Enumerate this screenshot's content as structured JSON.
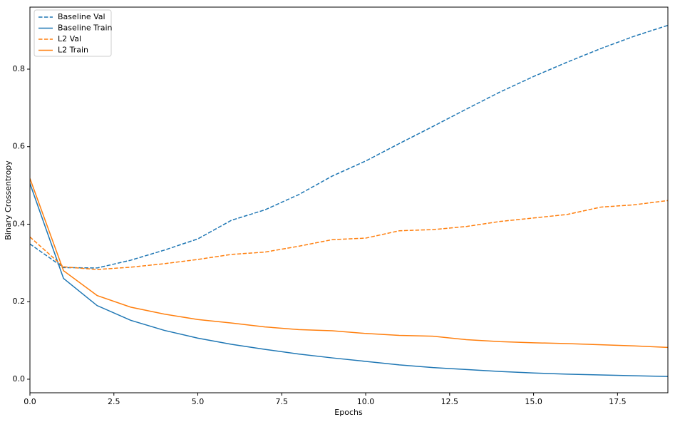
{
  "chart_data": {
    "type": "line",
    "xlabel": "Epochs",
    "ylabel": "Binary Crossentropy",
    "x": [
      0,
      1,
      2,
      3,
      4,
      5,
      6,
      7,
      8,
      9,
      10,
      11,
      12,
      13,
      14,
      15,
      16,
      17,
      18,
      19
    ],
    "series": [
      {
        "name": "Baseline Val",
        "color": "#1f77b4",
        "linestyle": "dashed",
        "values": [
          0.349,
          0.288,
          0.287,
          0.307,
          0.333,
          0.362,
          0.41,
          0.437,
          0.476,
          0.524,
          0.563,
          0.608,
          0.652,
          0.697,
          0.741,
          0.781,
          0.818,
          0.853,
          0.885,
          0.913
        ]
      },
      {
        "name": "Baseline Train",
        "color": "#1f77b4",
        "linestyle": "solid",
        "values": [
          0.505,
          0.26,
          0.19,
          0.152,
          0.126,
          0.106,
          0.09,
          0.077,
          0.065,
          0.055,
          0.046,
          0.037,
          0.03,
          0.025,
          0.02,
          0.016,
          0.013,
          0.011,
          0.009,
          0.007
        ]
      },
      {
        "name": "L2 Val",
        "color": "#ff7f0e",
        "linestyle": "dashed",
        "values": [
          0.367,
          0.29,
          0.283,
          0.289,
          0.298,
          0.309,
          0.322,
          0.328,
          0.343,
          0.36,
          0.364,
          0.383,
          0.386,
          0.394,
          0.407,
          0.416,
          0.425,
          0.444,
          0.45,
          0.461
        ]
      },
      {
        "name": "L2 Train",
        "color": "#ff7f0e",
        "linestyle": "solid",
        "values": [
          0.518,
          0.28,
          0.216,
          0.186,
          0.168,
          0.154,
          0.145,
          0.135,
          0.128,
          0.125,
          0.118,
          0.113,
          0.111,
          0.102,
          0.097,
          0.094,
          0.092,
          0.089,
          0.086,
          0.082
        ]
      }
    ],
    "xlim": [
      0,
      19
    ],
    "xticks": [
      {
        "value": 0,
        "label": "0.0"
      },
      2.5,
      {
        "value": 5,
        "label": "5.0"
      },
      7.5,
      {
        "value": 10,
        "label": "10.0"
      },
      12.5,
      {
        "value": 15,
        "label": "15.0"
      },
      17.5
    ],
    "ylim": [
      -0.035,
      0.96
    ],
    "yticks": [
      {
        "value": 0,
        "label": "0.0"
      },
      0.2,
      0.4,
      0.6,
      0.8
    ],
    "grid": false,
    "legend": "upper left"
  }
}
